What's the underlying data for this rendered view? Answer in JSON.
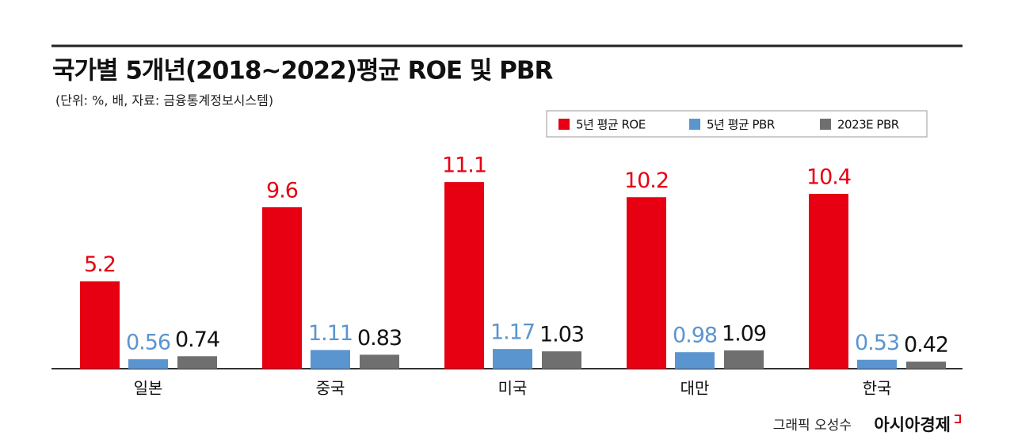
{
  "chart_data": {
    "type": "bar",
    "title": "국가별 5개년(2018~2022)평균 ROE 및 PBR",
    "subtitle": "(단위: %, 배, 자료: 금융통계정보시스템)",
    "categories": [
      "일본",
      "중국",
      "미국",
      "대만",
      "한국"
    ],
    "series": [
      {
        "name": "5년 평균 ROE",
        "color": "#e60012",
        "label_color": "#e60012",
        "values": [
          5.2,
          9.6,
          11.1,
          10.2,
          10.4
        ]
      },
      {
        "name": "5년 평균 PBR",
        "color": "#5b95cf",
        "label_color": "#5b95cf",
        "values": [
          0.56,
          1.11,
          1.17,
          0.98,
          0.53
        ]
      },
      {
        "name": "2023E PBR",
        "color": "#6f6f6f",
        "label_color": "#111111",
        "values": [
          0.74,
          0.83,
          1.03,
          1.09,
          0.42
        ]
      }
    ],
    "ylim": [
      0,
      12
    ],
    "legend": "upper right",
    "credit": "그래픽 오성수",
    "publisher": "아시아경제"
  }
}
